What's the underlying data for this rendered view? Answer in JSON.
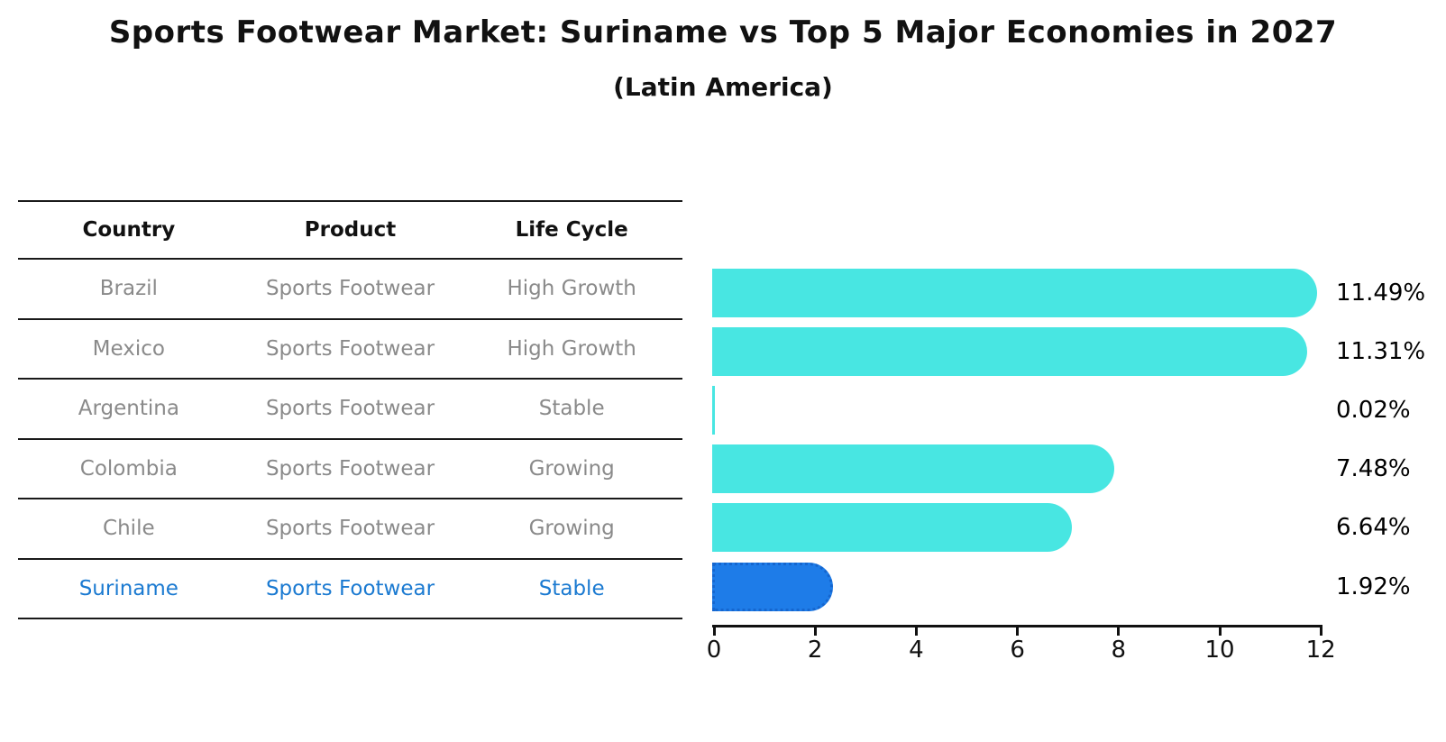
{
  "title": "Sports Footwear Market: Suriname vs Top 5 Major Economies in 2027",
  "subtitle": "(Latin America)",
  "table": {
    "columns": [
      "Country",
      "Product",
      "Life Cycle"
    ],
    "rows": [
      {
        "country": "Brazil",
        "product": "Sports Footwear",
        "life_cycle": "High Growth",
        "highlight": false
      },
      {
        "country": "Mexico",
        "product": "Sports Footwear",
        "life_cycle": "High Growth",
        "highlight": false
      },
      {
        "country": "Argentina",
        "product": "Sports Footwear",
        "life_cycle": "Stable",
        "highlight": false
      },
      {
        "country": "Colombia",
        "product": "Sports Footwear",
        "life_cycle": "Growing",
        "highlight": false
      },
      {
        "country": "Chile",
        "product": "Sports Footwear",
        "life_cycle": "Growing",
        "highlight": false
      },
      {
        "country": "Suriname",
        "product": "Sports Footwear",
        "life_cycle": "Stable",
        "highlight": true
      }
    ]
  },
  "chart_data": {
    "type": "bar",
    "orientation": "horizontal",
    "title": "Sports Footwear Market: Suriname vs Top 5 Major Economies in 2027 (Latin America)",
    "categories": [
      "Brazil",
      "Mexico",
      "Argentina",
      "Colombia",
      "Chile",
      "Suriname"
    ],
    "values": [
      11.49,
      11.31,
      0.02,
      7.48,
      6.64,
      1.92
    ],
    "value_labels": [
      "11.49%",
      "11.31%",
      "0.02%",
      "7.48%",
      "6.64%",
      "1.92%"
    ],
    "xlabel": "",
    "ylabel": "",
    "xlim": [
      0,
      12
    ],
    "x_ticks": [
      0,
      2,
      4,
      6,
      8,
      10,
      12
    ],
    "grid": false,
    "legend": false,
    "highlight_index": 5
  },
  "colors": {
    "bar": "#48e6e2",
    "highlight_bar": "#1e7ce8",
    "highlight_border": "#1566cf",
    "highlight_text": "#1b7ad1",
    "row_text": "#8a8a8a",
    "header_text": "#111111",
    "axis": "#111111",
    "value_label": "#000000"
  }
}
